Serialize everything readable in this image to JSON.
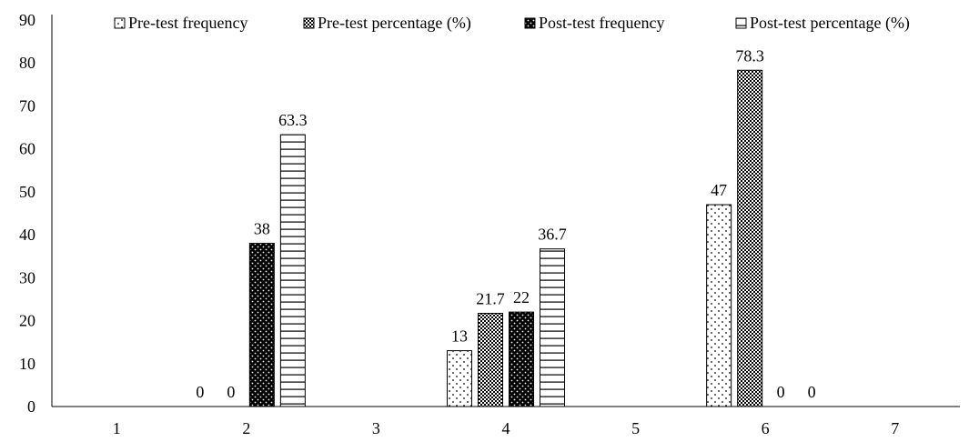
{
  "chart_data": {
    "type": "bar",
    "title": "",
    "xlabel": "",
    "ylabel": "",
    "categories": [
      "1",
      "2",
      "3",
      "4",
      "5",
      "6",
      "7"
    ],
    "ylim": [
      0,
      90
    ],
    "yticks": [
      "0",
      "10",
      "20",
      "30",
      "40",
      "50",
      "60",
      "70",
      "80",
      "90"
    ],
    "grid": false,
    "legend_position": "top",
    "series": [
      {
        "name": "Pre-test frequency",
        "pattern": "dots",
        "values": [
          null,
          0,
          null,
          13,
          null,
          47,
          null
        ],
        "labels": [
          null,
          "0",
          null,
          "13",
          null,
          "47",
          null
        ]
      },
      {
        "name": "Pre-test percentage (%)",
        "pattern": "checker",
        "values": [
          null,
          0,
          null,
          21.7,
          null,
          78.3,
          null
        ],
        "labels": [
          null,
          "0",
          null,
          "21.7",
          null,
          "78.3",
          null
        ]
      },
      {
        "name": "Post-test frequency",
        "pattern": "dark-dots",
        "values": [
          null,
          38,
          null,
          22,
          null,
          0,
          null
        ],
        "labels": [
          null,
          "38",
          null,
          "22",
          null,
          "0",
          null
        ]
      },
      {
        "name": "Post-test percentage (%)",
        "pattern": "hlines",
        "values": [
          null,
          63.3,
          null,
          36.7,
          null,
          0,
          null
        ],
        "labels": [
          null,
          "63.3",
          null,
          "36.7",
          null,
          "0",
          null
        ]
      }
    ],
    "colors": {
      "ink": "#000000",
      "background": "#ffffff"
    }
  }
}
